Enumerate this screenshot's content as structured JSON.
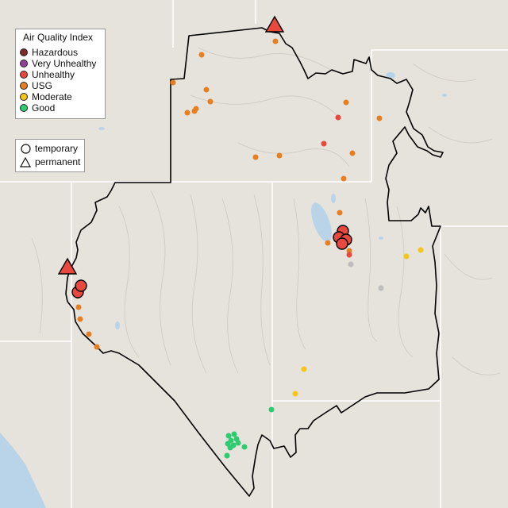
{
  "legend": {
    "title": "Air Quality Index",
    "categories": [
      {
        "label": "Hazardous",
        "color": "#7e2a2a"
      },
      {
        "label": "Very Unhealthy",
        "color": "#8f3f97"
      },
      {
        "label": "Unhealthy",
        "color": "#e8483d"
      },
      {
        "label": "USG",
        "color": "#e67e22"
      },
      {
        "label": "Moderate",
        "color": "#f5c518"
      },
      {
        "label": "Good",
        "color": "#2ecc71"
      }
    ]
  },
  "monitor_types": [
    {
      "label": "temporary",
      "icon": "circle-icon"
    },
    {
      "label": "permanent",
      "icon": "triangle-icon"
    }
  ],
  "colors": {
    "land": "#e6e2dc",
    "water": "#b9d4e8",
    "boundary": "#000000",
    "state_line": "#ffffff",
    "no_data": "#bdbdbd"
  }
}
